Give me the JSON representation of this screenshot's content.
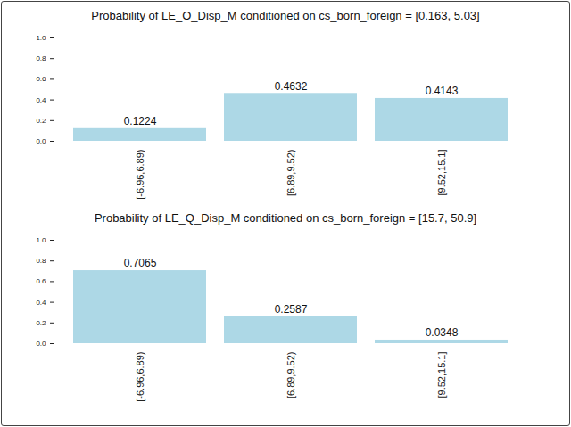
{
  "chart_data": [
    {
      "type": "bar",
      "title": "Probability of LE_O_Disp_M conditioned on cs_born_foreign = [0.163, 5.03]",
      "categories": [
        "[-6.96,6.89)",
        "[6.89,9.52)",
        "[9.52,15.1]"
      ],
      "values": [
        0.1224,
        0.4632,
        0.4143
      ],
      "color": "#add8e6",
      "ylim": [
        0,
        1
      ],
      "yticks": [
        {
          "value": 0,
          "label": "0.0"
        },
        0.2,
        0.4,
        0.6,
        0.8,
        {
          "value": 1,
          "label": "1.0"
        }
      ],
      "data_labels": true
    },
    {
      "type": "bar",
      "title": "Probability of LE_Q_Disp_M conditioned on cs_born_foreign = [15.7, 50.9]",
      "categories": [
        "[-6.96,6.89)",
        "[6.89,9.52)",
        "[9.52,15.1]"
      ],
      "values": [
        0.7065,
        0.2587,
        0.0348
      ],
      "color": "#add8e6",
      "ylim": [
        0,
        1
      ],
      "yticks": [
        {
          "value": 0,
          "label": "0.0"
        },
        0.2,
        0.4,
        0.6,
        0.8,
        {
          "value": 1,
          "label": "1.0"
        }
      ],
      "data_labels": true
    }
  ]
}
